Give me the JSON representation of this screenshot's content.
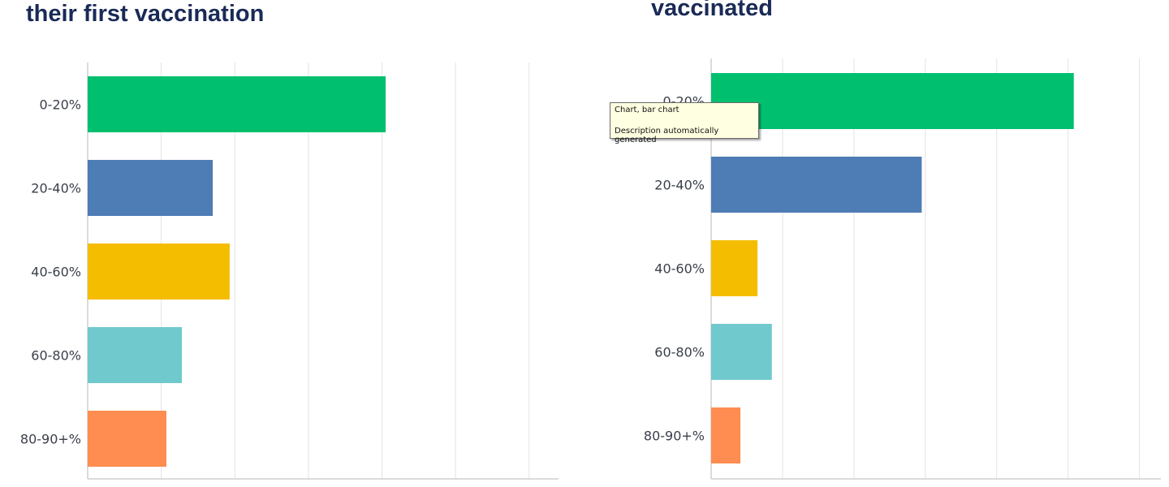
{
  "chart_data": [
    {
      "type": "bar",
      "orientation": "horizontal",
      "title": "their first vaccination",
      "categories": [
        "0-20%",
        "20-40%",
        "40-60%",
        "60-80%",
        "80-90+%"
      ],
      "values": [
        4.05,
        1.7,
        1.93,
        1.28,
        1.07
      ],
      "xlim": [
        0,
        6.4
      ],
      "grid": true,
      "colors": [
        "#00bf6f",
        "#4e7cb5",
        "#f5bd00",
        "#70c9cd",
        "#ff8c50"
      ]
    },
    {
      "type": "bar",
      "orientation": "horizontal",
      "title": "vaccinated",
      "categories": [
        "0-20%",
        "20-40%",
        "40-60%",
        "60-80%",
        "80-90+%"
      ],
      "values": [
        5.08,
        2.95,
        0.65,
        0.85,
        0.41
      ],
      "xlim": [
        0,
        6.3
      ],
      "grid": true,
      "colors": [
        "#00bf6f",
        "#4e7cb5",
        "#f5bd00",
        "#70c9cd",
        "#ff8c50"
      ]
    }
  ],
  "tooltip": {
    "line1": "Chart, bar chart",
    "line2": "Description automatically generated"
  }
}
